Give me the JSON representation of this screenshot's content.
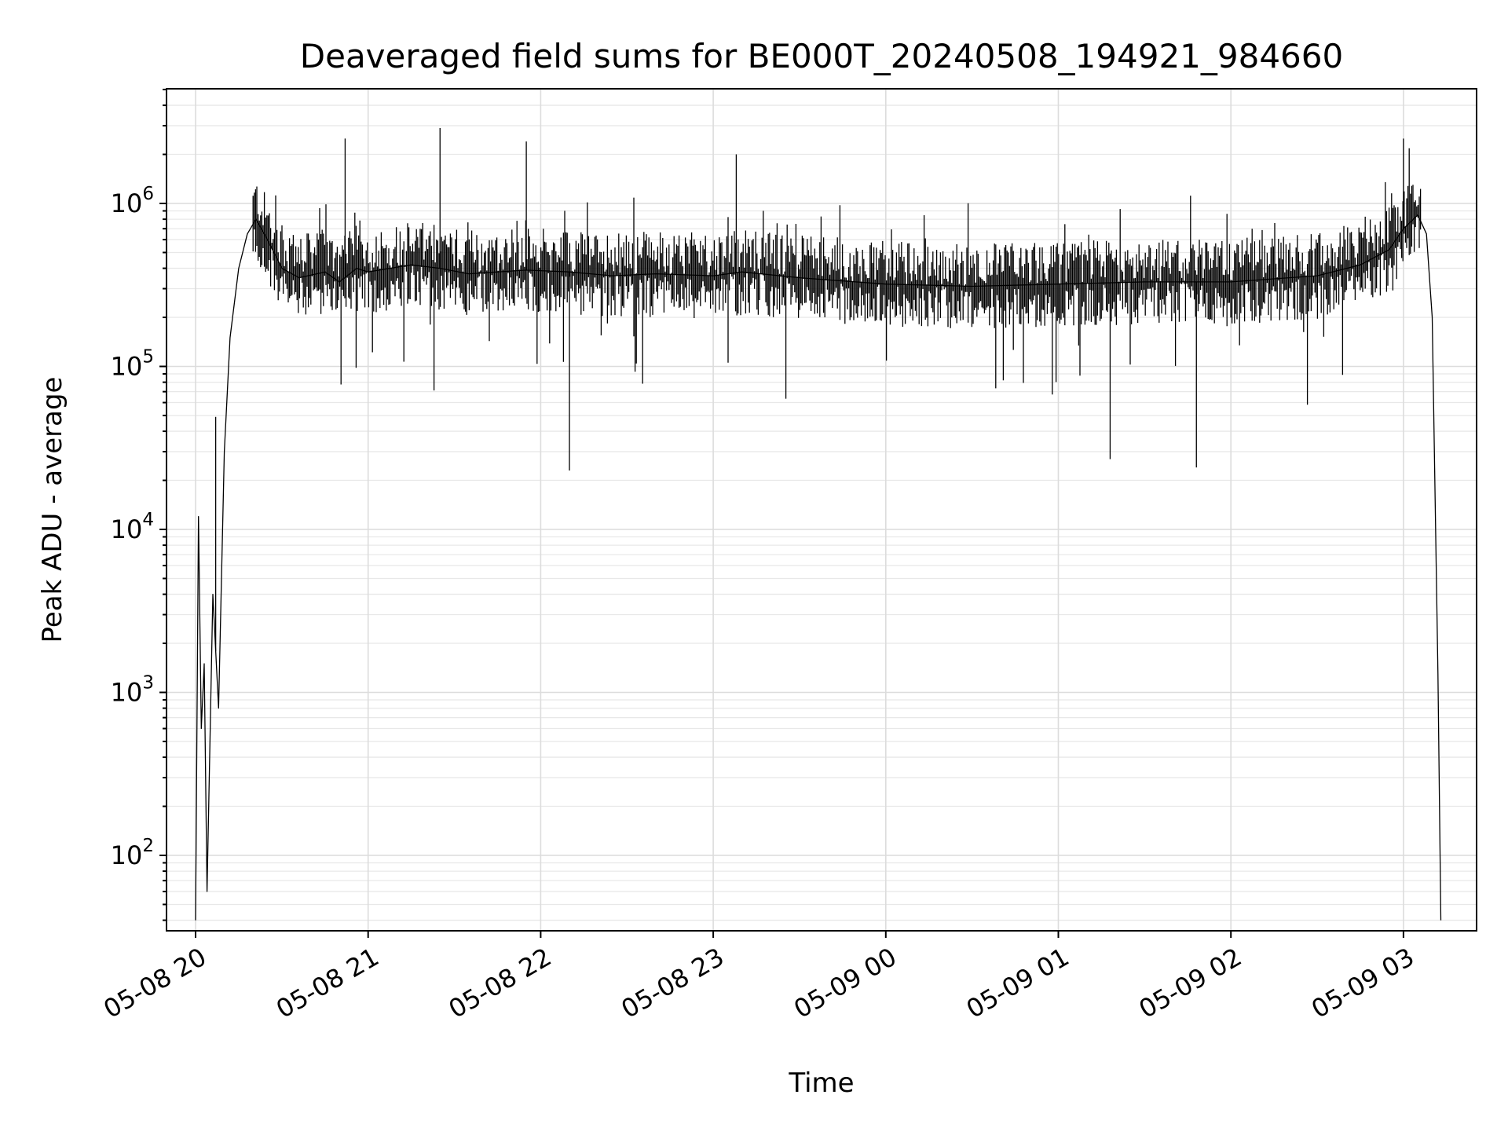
{
  "chart_data": {
    "type": "line",
    "title": "Deaveraged field sums for BE000T_20240508_194921_984660",
    "xlabel": "Time",
    "ylabel": "Peak ADU - average",
    "y_scale": "log",
    "ylim": [
      35,
      5000000
    ],
    "xlim": [
      "2024-05-08 19:49",
      "2024-05-09 03:25"
    ],
    "x_ticks": [
      "05-08 20",
      "05-08 21",
      "05-08 22",
      "05-08 23",
      "05-09 00",
      "05-09 01",
      "05-09 02",
      "05-09 03"
    ],
    "y_ticks": [
      {
        "value": 100,
        "base": "10",
        "exp": "2"
      },
      {
        "value": 1000,
        "base": "10",
        "exp": "3"
      },
      {
        "value": 10000,
        "base": "10",
        "exp": "4"
      },
      {
        "value": 100000,
        "base": "10",
        "exp": "5"
      },
      {
        "value": 1000000,
        "base": "10",
        "exp": "6"
      }
    ],
    "grid": true,
    "legend": "none",
    "line_color": "#000000",
    "series": [
      {
        "x": [
          "2024-05-08 20:00",
          "2024-05-08 20:01",
          "2024-05-08 20:02",
          "2024-05-08 20:03",
          "2024-05-08 20:04",
          "2024-05-08 20:06",
          "2024-05-08 20:08",
          "2024-05-08 20:10",
          "2024-05-08 20:12",
          "2024-05-08 20:15",
          "2024-05-08 20:18",
          "2024-05-08 20:21",
          "2024-05-08 20:25",
          "2024-05-08 20:30",
          "2024-05-08 20:36",
          "2024-05-08 20:45",
          "2024-05-08 20:50",
          "2024-05-08 20:56",
          "2024-05-08 21:00",
          "2024-05-08 21:15",
          "2024-05-08 21:25",
          "2024-05-08 21:35",
          "2024-05-08 21:45",
          "2024-05-08 21:55",
          "2024-05-08 22:10",
          "2024-05-08 22:25",
          "2024-05-08 22:40",
          "2024-05-08 23:00",
          "2024-05-08 23:10",
          "2024-05-08 23:30",
          "2024-05-09 00:00",
          "2024-05-09 00:30",
          "2024-05-09 01:00",
          "2024-05-09 01:30",
          "2024-05-09 02:00",
          "2024-05-09 02:30",
          "2024-05-09 02:45",
          "2024-05-09 02:55",
          "2024-05-09 03:00",
          "2024-05-09 03:05",
          "2024-05-09 03:08",
          "2024-05-09 03:10",
          "2024-05-09 03:12",
          "2024-05-09 03:13"
        ],
        "y": [
          40,
          12000,
          600,
          1500,
          60,
          4000,
          800,
          30000,
          150000,
          400000,
          650000,
          800000,
          600000,
          400000,
          350000,
          380000,
          330000,
          400000,
          380000,
          420000,
          400000,
          370000,
          380000,
          390000,
          380000,
          360000,
          370000,
          360000,
          380000,
          350000,
          320000,
          310000,
          320000,
          330000,
          330000,
          360000,
          420000,
          520000,
          700000,
          850000,
          650000,
          200000,
          1300,
          40
        ],
        "peaks": [
          {
            "x": "2024-05-08 20:07",
            "y": 49000
          },
          {
            "x": "2024-05-08 20:52",
            "y": 2500000
          },
          {
            "x": "2024-05-08 21:25",
            "y": 2900000
          },
          {
            "x": "2024-05-08 21:55",
            "y": 2400000
          },
          {
            "x": "2024-05-08 22:10",
            "y": 23000
          },
          {
            "x": "2024-05-08 23:08",
            "y": 2000000
          },
          {
            "x": "2024-05-09 01:18",
            "y": 27000
          },
          {
            "x": "2024-05-09 01:48",
            "y": 24000
          },
          {
            "x": "2024-05-09 03:00",
            "y": 2500000
          }
        ]
      }
    ]
  }
}
